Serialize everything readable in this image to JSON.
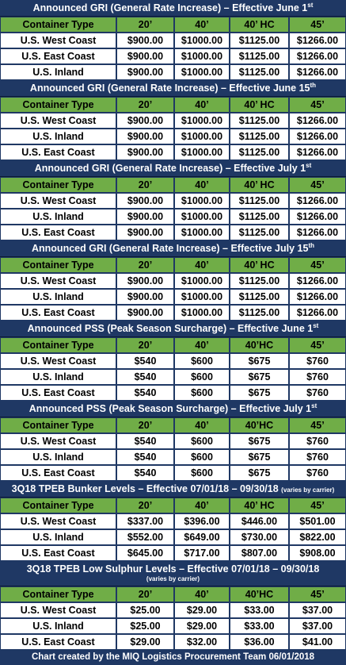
{
  "colors": {
    "title_bg": "#1f3864",
    "header_bg": "#70ad47",
    "cell_bg": "#ffffff",
    "title_text": "#ffffff"
  },
  "sections": [
    {
      "title": "Announced GRI (General Rate Increase) – Effective June 1",
      "title_sup": "st",
      "headers": [
        "Container Type",
        "20’",
        "40’",
        "40’ HC",
        "45’"
      ],
      "rows": [
        [
          "U.S. West Coast",
          "$900.00",
          "$1000.00",
          "$1125.00",
          "$1266.00"
        ],
        [
          "U.S. East Coast",
          "$900.00",
          "$1000.00",
          "$1125.00",
          "$1266.00"
        ],
        [
          "U.S. Inland",
          "$900.00",
          "$1000.00",
          "$1125.00",
          "$1266.00"
        ]
      ]
    },
    {
      "title": "Announced GRI (General Rate Increase) – Effective June 15",
      "title_sup": "th",
      "headers": [
        "Container Type",
        "20’",
        "40’",
        "40’ HC",
        "45’"
      ],
      "rows": [
        [
          "U.S. West Coast",
          "$900.00",
          "$1000.00",
          "$1125.00",
          "$1266.00"
        ],
        [
          "U.S. Inland",
          "$900.00",
          "$1000.00",
          "$1125.00",
          "$1266.00"
        ],
        [
          "U.S. East Coast",
          "$900.00",
          "$1000.00",
          "$1125.00",
          "$1266.00"
        ]
      ]
    },
    {
      "title": "Announced GRI (General Rate Increase) – Effective July 1",
      "title_sup": "st",
      "headers": [
        "Container Type",
        "20’",
        "40’",
        "40’ HC",
        "45’"
      ],
      "rows": [
        [
          "U.S. West Coast",
          "$900.00",
          "$1000.00",
          "$1125.00",
          "$1266.00"
        ],
        [
          "U.S. Inland",
          "$900.00",
          "$1000.00",
          "$1125.00",
          "$1266.00"
        ],
        [
          "U.S. East Coast",
          "$900.00",
          "$1000.00",
          "$1125.00",
          "$1266.00"
        ]
      ]
    },
    {
      "title": "Announced GRI (General Rate Increase) – Effective July 15",
      "title_sup": "th",
      "headers": [
        "Container Type",
        "20’",
        "40’",
        "40’ HC",
        "45’"
      ],
      "rows": [
        [
          "U.S. West Coast",
          "$900.00",
          "$1000.00",
          "$1125.00",
          "$1266.00"
        ],
        [
          "U.S. Inland",
          "$900.00",
          "$1000.00",
          "$1125.00",
          "$1266.00"
        ],
        [
          "U.S. East Coast",
          "$900.00",
          "$1000.00",
          "$1125.00",
          "$1266.00"
        ]
      ]
    },
    {
      "title": "Announced PSS (Peak Season Surcharge) – Effective June 1",
      "title_sup": "st",
      "headers": [
        "Container Type",
        "20’",
        "40’",
        "40’HC",
        "45’"
      ],
      "rows": [
        [
          "U.S. West Coast",
          "$540",
          "$600",
          "$675",
          "$760"
        ],
        [
          "U.S. Inland",
          "$540",
          "$600",
          "$675",
          "$760"
        ],
        [
          "U.S. East Coast",
          "$540",
          "$600",
          "$675",
          "$760"
        ]
      ]
    },
    {
      "title": "Announced PSS (Peak Season Surcharge) – Effective July 1",
      "title_sup": "st",
      "headers": [
        "Container Type",
        "20’",
        "40’",
        "40’HC",
        "45’"
      ],
      "rows": [
        [
          "U.S. West Coast",
          "$540",
          "$600",
          "$675",
          "$760"
        ],
        [
          "U.S. Inland",
          "$540",
          "$600",
          "$675",
          "$760"
        ],
        [
          "U.S. East Coast",
          "$540",
          "$600",
          "$675",
          "$760"
        ]
      ]
    },
    {
      "title": "3Q18 TPEB Bunker Levels – Effective 07/01/18 – 09/30/18",
      "title_note": "(varies by carrier)",
      "headers": [
        "Container Type",
        "20’",
        "40’",
        "40’ HC",
        "45’"
      ],
      "rows": [
        [
          "U.S. West Coast",
          "$337.00",
          "$396.00",
          "$446.00",
          "$501.00"
        ],
        [
          "U.S. Inland",
          "$552.00",
          "$649.00",
          "$730.00",
          "$822.00"
        ],
        [
          "U.S. East Coast",
          "$645.00",
          "$717.00",
          "$807.00",
          "$908.00"
        ]
      ]
    },
    {
      "title": "3Q18 TPEB Low Sulphur Levels – Effective 07/01/18 – 09/30/18",
      "title_note_line": "(varies by carrier)",
      "headers": [
        "Container Type",
        "20’",
        "40’",
        "40’HC",
        "45’"
      ],
      "rows": [
        [
          "U.S. West Coast",
          "$25.00",
          "$29.00",
          "$33.00",
          "$37.00"
        ],
        [
          "U.S. Inland",
          "$25.00",
          "$29.00",
          "$33.00",
          "$37.00"
        ],
        [
          "U.S. East Coast",
          "$29.00",
          "$32.00",
          "$36.00",
          "$41.00"
        ]
      ]
    }
  ],
  "footer": "Chart created by the MIQ Logistics Procurement Team 06/01/2018"
}
